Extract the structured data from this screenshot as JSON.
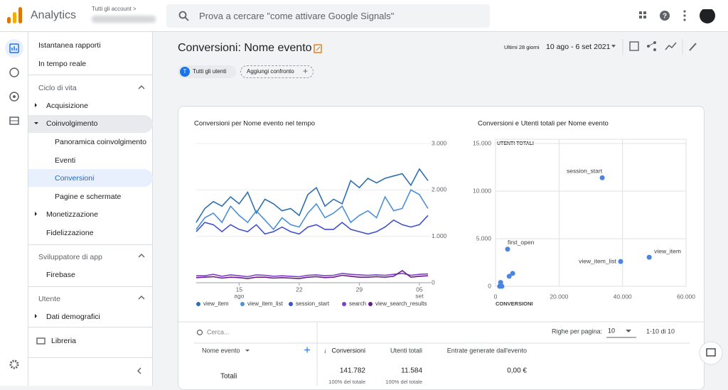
{
  "header": {
    "app": "Analytics",
    "account": "Tutti gli account >",
    "search": "Prova a cercare \"come attivare Google Signals\""
  },
  "nav": {
    "items": [
      "Istantanea rapporti",
      "In tempo reale"
    ],
    "lifecycle": {
      "title": "Ciclo di vita",
      "items": [
        "Acquisizione",
        "Coinvolgimento",
        "Panoramica coinvolgimento",
        "Eventi",
        "Conversioni",
        "Pagine e schermate",
        "Monetizzazione",
        "Fidelizzazione"
      ]
    },
    "developer": {
      "title": "Sviluppatore di app",
      "items": [
        "Firebase"
      ]
    },
    "user": {
      "title": "Utente",
      "items": [
        "Dati demografici"
      ]
    },
    "library": "Libreria"
  },
  "page": {
    "title": "Conversioni: Nome evento",
    "date_prefix": "Ultimi 28 giorni",
    "date_range": "10 ago - 6 set 2021",
    "chip_letter": "T",
    "chip": "Tutti gli utenti",
    "compare": "Aggiungi confronto"
  },
  "line_chart": {
    "type": "line",
    "title": "Conversioni per Nome evento nel tempo",
    "categories": [
      null,
      null,
      null,
      null,
      null,
      "15",
      null,
      null,
      null,
      null,
      null,
      null,
      "22",
      null,
      null,
      null,
      null,
      null,
      null,
      "29",
      null,
      null,
      null,
      null,
      null,
      null,
      "05",
      null
    ],
    "category_months": [
      null,
      null,
      null,
      null,
      null,
      "ago",
      null,
      null,
      null,
      null,
      null,
      null,
      null,
      null,
      null,
      null,
      null,
      null,
      null,
      null,
      null,
      null,
      null,
      null,
      null,
      null,
      "set",
      null
    ],
    "ylim": [
      0,
      3000
    ],
    "yticks": [
      0,
      {
        "value": 1000,
        "label": "1.000"
      },
      {
        "value": 2000,
        "label": "2.000"
      },
      {
        "value": 3000,
        "label": "3.000"
      }
    ],
    "series": [
      {
        "name": "view_item",
        "color": "#2f6fb0",
        "values": [
          1300,
          1600,
          1750,
          1650,
          1850,
          1700,
          1950,
          1500,
          1800,
          1700,
          1550,
          1600,
          1450,
          1900,
          2050,
          1650,
          1800,
          1700,
          2200,
          2050,
          2250,
          2150,
          2250,
          2300,
          2350,
          2100,
          2450,
          2200
        ]
      },
      {
        "name": "view_item_list",
        "color": "#4b8fd9",
        "values": [
          1150,
          1400,
          1500,
          1300,
          1650,
          1450,
          1300,
          1550,
          1350,
          1150,
          1400,
          1250,
          1200,
          1500,
          1700,
          1400,
          1500,
          1650,
          1300,
          1450,
          1550,
          1400,
          1850,
          1550,
          1600,
          2000,
          1900,
          1600
        ]
      },
      {
        "name": "session_start",
        "color": "#3f4fd0",
        "values": [
          1100,
          1300,
          1250,
          1100,
          1250,
          1150,
          1100,
          1250,
          1050,
          1100,
          1200,
          1100,
          1050,
          1200,
          1250,
          1150,
          1150,
          1300,
          1150,
          1100,
          1050,
          1100,
          1200,
          1350,
          1250,
          1200,
          1250,
          1450
        ]
      },
      {
        "name": "search",
        "color": "#7b3fc9",
        "values": [
          150,
          150,
          180,
          140,
          170,
          150,
          130,
          170,
          160,
          140,
          150,
          140,
          130,
          160,
          170,
          150,
          160,
          200,
          180,
          170,
          160,
          170,
          160,
          180,
          200,
          160,
          180,
          190
        ]
      },
      {
        "name": "view_search_results",
        "color": "#6a1b8a",
        "values": [
          110,
          120,
          130,
          100,
          120,
          110,
          90,
          120,
          120,
          100,
          110,
          100,
          90,
          120,
          130,
          110,
          120,
          160,
          140,
          120,
          120,
          130,
          120,
          140,
          260,
          120,
          140,
          150
        ]
      }
    ]
  },
  "scatter_chart": {
    "type": "scatter",
    "title": "Conversioni e Utenti totali per Nome evento",
    "x_label": "CONVERSIONI",
    "y_label": "UTENTI TOTALI",
    "color": "#4a86e0",
    "xlim": [
      0,
      60000
    ],
    "xticks": [
      0,
      {
        "value": 20000,
        "label": "20.000"
      },
      {
        "value": 40000,
        "label": "40.000"
      },
      {
        "value": 60000,
        "label": "60.000"
      }
    ],
    "ylim": [
      0,
      15000
    ],
    "yticks": [
      0,
      {
        "value": 5000,
        "label": "5.000"
      },
      {
        "value": 10000,
        "label": "10.000"
      },
      {
        "value": 15000,
        "label": "15.000"
      }
    ],
    "names": [
      "session_start",
      "view_item",
      "view_item_list",
      "first_open",
      null,
      null,
      null,
      null,
      null
    ],
    "x": [
      33600,
      48400,
      39400,
      3800,
      5400,
      4300,
      1600,
      2000,
      1300
    ],
    "y": [
      11400,
      3050,
      2600,
      3900,
      1350,
      1050,
      400,
      0,
      0
    ]
  },
  "table": {
    "search": "Cerca...",
    "rows_per_page_label": "Righe per pagina:",
    "rows_per_page": "10",
    "pagination": "1-10 di 10",
    "headers": [
      "Nome evento",
      "Conversioni",
      "Utenti totali",
      "Entrate generate dall'evento"
    ],
    "totals": {
      "label": "Totali",
      "values": [
        "141.782",
        "11.584",
        "0,00 €"
      ],
      "shares": [
        "100% del totale",
        "100% del totale"
      ]
    }
  }
}
